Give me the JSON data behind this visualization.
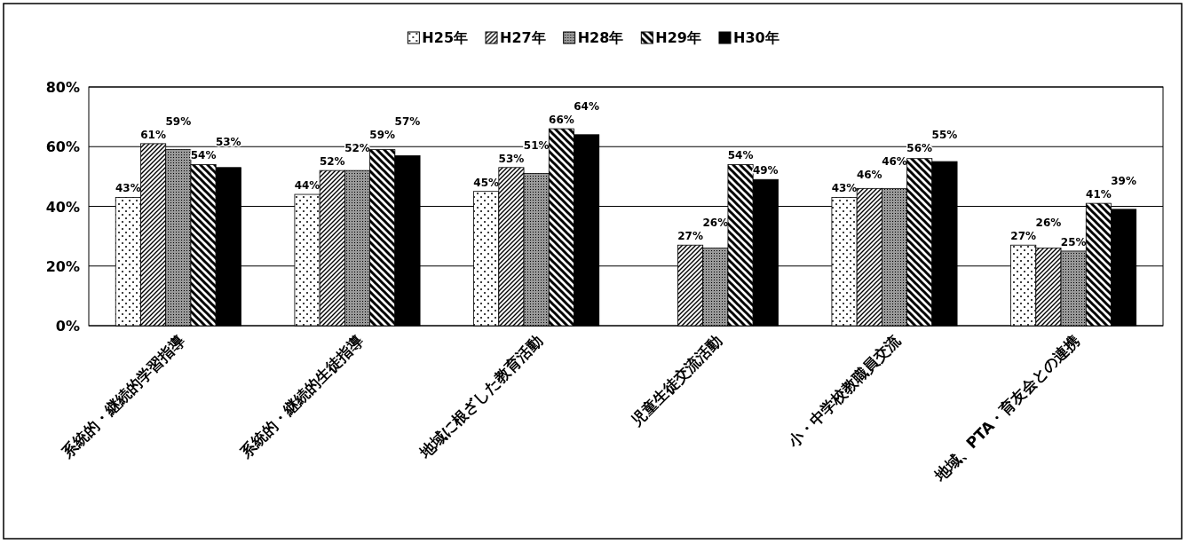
{
  "chart_data": {
    "type": "bar",
    "categories": [
      "系統的・継続的学習指導",
      "系統的・継続的生徒指導",
      "地域に根ざした教育活動",
      "児童生徒交流活動",
      "小・中学校教職員交流",
      "地域、PTA・育友会との連携"
    ],
    "series": [
      {
        "name": "H25年",
        "color": "#000000",
        "values": [
          43,
          44,
          45,
          null,
          43,
          27
        ],
        "value_labels": [
          "43%",
          "44%",
          "45%",
          null,
          "43%",
          "27%"
        ]
      },
      {
        "name": "H27年",
        "color": "#000000",
        "values": [
          61,
          52,
          53,
          27,
          46,
          26
        ],
        "value_labels": [
          "61%",
          "52%",
          "53%",
          "27%",
          "46%",
          "26%"
        ]
      },
      {
        "name": "H28年",
        "color": "#000000",
        "values": [
          59,
          52,
          51,
          26,
          46,
          25
        ],
        "value_labels": [
          "59%",
          "52%",
          "51%",
          "26%",
          "46%",
          "25%"
        ]
      },
      {
        "name": "H29年",
        "color": "#000000",
        "values": [
          54,
          59,
          66,
          54,
          56,
          41
        ],
        "value_labels": [
          "54%",
          "59%",
          "66%",
          "54%",
          "56%",
          "41%"
        ]
      },
      {
        "name": "H30年",
        "color": "#000000",
        "values": [
          53,
          57,
          64,
          49,
          55,
          39
        ],
        "value_labels": [
          "53%",
          "57%",
          "64%",
          "49%",
          "55%",
          "39%"
        ]
      }
    ],
    "ylim": [
      0,
      80
    ],
    "yticks": [
      {
        "value": 0,
        "label": "0%"
      },
      {
        "value": 20,
        "label": "20%"
      },
      {
        "value": 40,
        "label": "40%"
      },
      {
        "value": 60,
        "label": "60%"
      },
      {
        "value": 80,
        "label": "80%"
      }
    ],
    "grid": "y",
    "legend": "top"
  }
}
